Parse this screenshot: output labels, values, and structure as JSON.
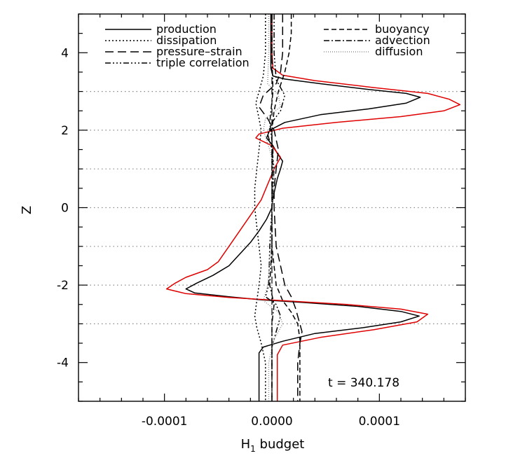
{
  "chart_data": {
    "type": "line",
    "title": "",
    "xlabel": "H",
    "xlabel_sub": "1",
    "xlabel_rest": " budget",
    "ylabel": "Z",
    "xlim": [
      -0.00018,
      0.00018
    ],
    "ylim": [
      -5,
      5
    ],
    "xticks": [
      -0.0001,
      0.0,
      0.0001
    ],
    "xtick_labels": [
      "-0.0001",
      "0.0000",
      "0.0001"
    ],
    "yticks": [
      -4,
      -2,
      0,
      2,
      4
    ],
    "ytick_labels": [
      "-4",
      "-2",
      "0",
      "2",
      "4"
    ],
    "hgrid_at": [
      -3,
      -2,
      -1,
      0,
      1,
      2,
      3
    ],
    "annotation": "t = 340.178",
    "legend": {
      "left": [
        "production",
        "dissipation",
        "pressure–strain",
        "triple correlation"
      ],
      "right": [
        "buoyancy",
        "advection",
        "diffusion"
      ]
    },
    "series": [
      {
        "name": "production",
        "color": "#000000",
        "dash": "",
        "points": [
          [
            -1e-06,
            5
          ],
          [
            -1e-06,
            4
          ],
          [
            -1e-06,
            3.6
          ],
          [
            1e-06,
            3.4
          ],
          [
            1.2e-05,
            3.32
          ],
          [
            4.5e-05,
            3.2
          ],
          [
            9e-05,
            3.05
          ],
          [
            0.000125,
            2.95
          ],
          [
            0.000138,
            2.85
          ],
          [
            0.000125,
            2.7
          ],
          [
            9e-05,
            2.55
          ],
          [
            4.5e-05,
            2.4
          ],
          [
            1.2e-05,
            2.2
          ],
          [
            -2e-06,
            2
          ],
          [
            -5e-06,
            1.8
          ],
          [
            1e-06,
            1.6
          ],
          [
            5e-06,
            1.4
          ],
          [
            1e-05,
            1.2
          ],
          [
            8e-06,
            1
          ],
          [
            5e-06,
            0.75
          ],
          [
            3e-06,
            0.5
          ],
          [
            1e-06,
            0.25
          ],
          [
            0,
            0
          ],
          [
            -5e-06,
            -0.3
          ],
          [
            -1.2e-05,
            -0.6
          ],
          [
            -2e-05,
            -0.9
          ],
          [
            -3e-05,
            -1.2
          ],
          [
            -4e-05,
            -1.5
          ],
          [
            -5.5e-05,
            -1.75
          ],
          [
            -7e-05,
            -1.95
          ],
          [
            -8e-05,
            -2.1
          ],
          [
            -7.2e-05,
            -2.2
          ],
          [
            -4e-05,
            -2.3
          ],
          [
            -1e-05,
            -2.38
          ],
          [
            3e-05,
            -2.45
          ],
          [
            8e-05,
            -2.55
          ],
          [
            0.00012,
            -2.68
          ],
          [
            0.000137,
            -2.8
          ],
          [
            0.00012,
            -2.95
          ],
          [
            8.5e-05,
            -3.1
          ],
          [
            4e-05,
            -3.25
          ],
          [
            1e-05,
            -3.45
          ],
          [
            -8e-06,
            -3.6
          ],
          [
            -1.2e-05,
            -3.75
          ],
          [
            -1.2e-05,
            -4
          ],
          [
            -1.2e-05,
            -5
          ]
        ]
      },
      {
        "name": "red-total",
        "color": "#e00000",
        "dash": "",
        "points": [
          [
            0,
            5
          ],
          [
            0,
            4
          ],
          [
            1e-06,
            3.6
          ],
          [
            1e-05,
            3.42
          ],
          [
            4e-05,
            3.28
          ],
          [
            9.5e-05,
            3.1
          ],
          [
            0.000145,
            2.95
          ],
          [
            0.000165,
            2.8
          ],
          [
            0.000175,
            2.66
          ],
          [
            0.00016,
            2.5
          ],
          [
            0.00012,
            2.35
          ],
          [
            6e-05,
            2.2
          ],
          [
            1e-05,
            2.05
          ],
          [
            -1.2e-05,
            1.9
          ],
          [
            -1.5e-05,
            1.8
          ],
          [
            0,
            1.6
          ],
          [
            8e-06,
            1.3
          ],
          [
            2e-06,
            1
          ],
          [
            -4e-06,
            0.6
          ],
          [
            -1e-05,
            0.2
          ],
          [
            -2e-05,
            -0.2
          ],
          [
            -3e-05,
            -0.6
          ],
          [
            -4e-05,
            -1
          ],
          [
            -5e-05,
            -1.4
          ],
          [
            -6e-05,
            -1.6
          ],
          [
            -8e-05,
            -1.8
          ],
          [
            -9e-05,
            -1.95
          ],
          [
            -9.8e-05,
            -2.1
          ],
          [
            -8e-05,
            -2.22
          ],
          [
            -4e-05,
            -2.32
          ],
          [
            2e-05,
            -2.42
          ],
          [
            7e-05,
            -2.5
          ],
          [
            0.00012,
            -2.62
          ],
          [
            0.000145,
            -2.75
          ],
          [
            0.000135,
            -2.95
          ],
          [
            9.5e-05,
            -3.15
          ],
          [
            4.5e-05,
            -3.35
          ],
          [
            1e-05,
            -3.55
          ],
          [
            5e-06,
            -3.8
          ],
          [
            5e-06,
            -4
          ],
          [
            5e-06,
            -5
          ]
        ]
      },
      {
        "name": "dissipation",
        "color": "#000000",
        "dash": "2,3",
        "points": [
          [
            -6e-06,
            5
          ],
          [
            -6e-06,
            4
          ],
          [
            -8e-06,
            3.4
          ],
          [
            -1.2e-05,
            3
          ],
          [
            -1.5e-05,
            2.7
          ],
          [
            -1.2e-05,
            2.3
          ],
          [
            -1e-05,
            2
          ],
          [
            -1.2e-05,
            1.5
          ],
          [
            -1.4e-05,
            1
          ],
          [
            -1.6e-05,
            0.5
          ],
          [
            -1.6e-05,
            0
          ],
          [
            -1.4e-05,
            -0.5
          ],
          [
            -1.2e-05,
            -1
          ],
          [
            -1e-05,
            -1.5
          ],
          [
            -1.2e-05,
            -2
          ],
          [
            -1.4e-05,
            -2.4
          ],
          [
            -1.6e-05,
            -2.8
          ],
          [
            -1.4e-05,
            -3.1
          ],
          [
            -1e-05,
            -3.5
          ],
          [
            -6e-06,
            -4
          ],
          [
            -6e-06,
            -5
          ]
        ]
      },
      {
        "name": "pressure–strain",
        "color": "#000000",
        "dash": "12,6",
        "points": [
          [
            1e-05,
            5
          ],
          [
            1e-05,
            4
          ],
          [
            8e-06,
            3.5
          ],
          [
            4e-06,
            3.2
          ],
          [
            -8e-06,
            2.9
          ],
          [
            -1.2e-05,
            2.6
          ],
          [
            -4e-06,
            2.3
          ],
          [
            2e-06,
            2
          ],
          [
            6e-06,
            1.5
          ],
          [
            4e-06,
            1
          ],
          [
            2e-06,
            0.5
          ],
          [
            2e-06,
            0
          ],
          [
            3e-06,
            -0.5
          ],
          [
            4e-06,
            -1
          ],
          [
            8e-06,
            -1.5
          ],
          [
            1.2e-05,
            -2
          ],
          [
            1.8e-05,
            -2.3
          ],
          [
            2.2e-05,
            -2.6
          ],
          [
            2.5e-05,
            -2.9
          ],
          [
            2.8e-05,
            -3.2
          ],
          [
            2.6e-05,
            -3.5
          ],
          [
            2.4e-05,
            -4
          ],
          [
            2.4e-05,
            -5
          ]
        ]
      },
      {
        "name": "triple correlation",
        "color": "#000000",
        "dash": "8,3,2,3,2,3,2,3",
        "points": [
          [
            2e-06,
            5
          ],
          [
            2e-06,
            4
          ],
          [
            4e-06,
            3.3
          ],
          [
            1.2e-05,
            2.9
          ],
          [
            8e-06,
            2.5
          ],
          [
            0,
            2.2
          ],
          [
            -4e-06,
            1.9
          ],
          [
            0,
            1.5
          ],
          [
            2e-06,
            1
          ],
          [
            0,
            0
          ],
          [
            -2e-06,
            -1
          ],
          [
            -3e-06,
            -2
          ],
          [
            -6e-06,
            -2.3
          ],
          [
            4e-06,
            -2.5
          ],
          [
            8e-06,
            -2.8
          ],
          [
            4e-06,
            -3.2
          ],
          [
            0,
            -3.6
          ],
          [
            0,
            -5
          ]
        ]
      },
      {
        "name": "buoyancy",
        "color": "#000000",
        "dash": "7,4",
        "points": [
          [
            1.8e-05,
            5
          ],
          [
            1.8e-05,
            4.5
          ],
          [
            1.6e-05,
            4
          ],
          [
            1.2e-05,
            3.5
          ],
          [
            6e-06,
            3
          ],
          [
            2e-06,
            2.5
          ],
          [
            0,
            2
          ],
          [
            0,
            1
          ],
          [
            0,
            0
          ],
          [
            0,
            -1
          ],
          [
            4e-06,
            -2
          ],
          [
            1e-05,
            -2.4
          ],
          [
            1.8e-05,
            -2.7
          ],
          [
            2.4e-05,
            -3
          ],
          [
            2.6e-05,
            -3.4
          ],
          [
            2.6e-05,
            -4
          ],
          [
            2.6e-05,
            -5
          ]
        ]
      },
      {
        "name": "advection",
        "color": "#000000",
        "dash": "8,3,2,3",
        "points": [
          [
            0,
            5
          ],
          [
            0,
            4
          ],
          [
            1e-06,
            3
          ],
          [
            -2e-06,
            2.2
          ],
          [
            1e-06,
            1.5
          ],
          [
            0,
            0
          ],
          [
            0,
            -1
          ],
          [
            -2e-06,
            -2
          ],
          [
            2e-06,
            -2.5
          ],
          [
            0,
            -3
          ],
          [
            0,
            -5
          ]
        ]
      },
      {
        "name": "diffusion",
        "color": "#909090",
        "dash": "1,2",
        "points": [
          [
            -3e-06,
            5
          ],
          [
            -3e-06,
            4
          ],
          [
            -4e-06,
            3.2
          ],
          [
            6e-06,
            2.9
          ],
          [
            8e-06,
            2.6
          ],
          [
            -6e-06,
            2.3
          ],
          [
            -8e-06,
            2
          ],
          [
            -2e-06,
            1.5
          ],
          [
            2e-06,
            1
          ],
          [
            0,
            0
          ],
          [
            -1e-06,
            -1
          ],
          [
            -4e-06,
            -2
          ],
          [
            -8e-06,
            -2.4
          ],
          [
            6e-06,
            -2.7
          ],
          [
            1e-05,
            -3
          ],
          [
            2e-06,
            -3.4
          ],
          [
            -3e-06,
            -4
          ],
          [
            -3e-06,
            -5
          ]
        ]
      }
    ]
  }
}
